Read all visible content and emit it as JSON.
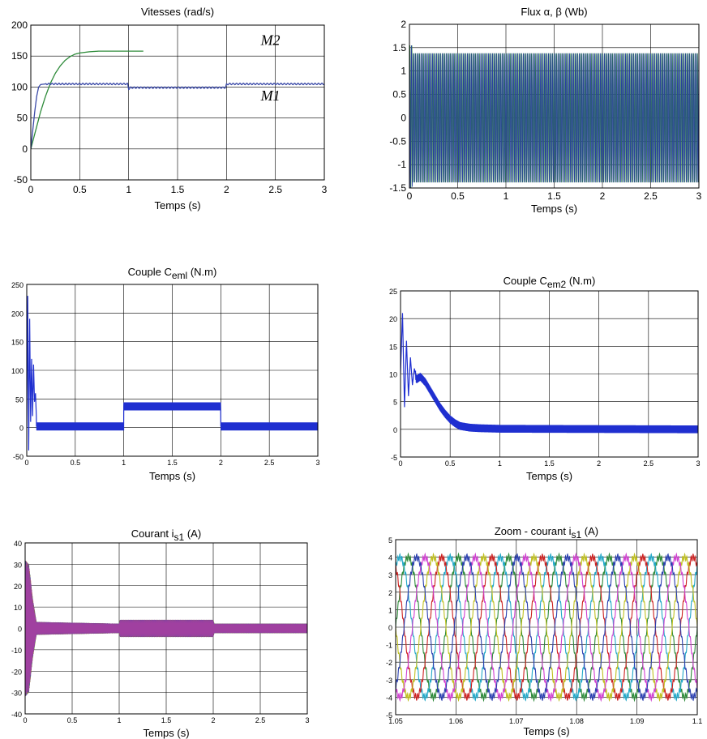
{
  "chart_data": [
    {
      "id": "vitesses",
      "type": "line",
      "title": "Vitesses (rad/s)",
      "xlabel": "Temps (s)",
      "ylabel": "",
      "xlim": [
        0,
        3
      ],
      "ylim": [
        -50,
        200
      ],
      "xticks": [
        0,
        0.5,
        1,
        1.5,
        2,
        2.5,
        3
      ],
      "yticks": [
        -50,
        0,
        50,
        100,
        150,
        200
      ],
      "grid": true,
      "annotations": [
        {
          "text": "M2",
          "x": 2.35,
          "y": 168
        },
        {
          "text": "M1",
          "x": 2.35,
          "y": 78
        }
      ],
      "series": [
        {
          "color": "#2e8b3a",
          "x": [
            0,
            0.05,
            0.1,
            0.15,
            0.2,
            0.25,
            0.3,
            0.35,
            0.4,
            0.45,
            0.5,
            0.6,
            0.7,
            0.8,
            0.9,
            1.0,
            1.15
          ],
          "y": [
            0,
            30,
            60,
            85,
            106,
            122,
            134,
            143,
            149,
            153,
            155,
            157,
            158,
            158,
            158,
            158,
            158
          ]
        },
        {
          "color": "#3b4aa8",
          "x": [
            0,
            0.02,
            0.04,
            0.06,
            0.08,
            0.1,
            0.15,
            0.5,
            0.99,
            1.0,
            1.02,
            1.1,
            1.99,
            2.0,
            2.02,
            3.0
          ],
          "y": [
            0,
            30,
            60,
            85,
            100,
            104,
            105,
            105,
            105,
            97,
            99,
            99,
            99,
            104,
            105,
            105
          ]
        }
      ]
    },
    {
      "id": "flux",
      "type": "line",
      "title": "Flux α, β (Wb)",
      "xlabel": "Temps (s)",
      "ylabel": "",
      "xlim": [
        0,
        3
      ],
      "ylim": [
        -1.5,
        2
      ],
      "xticks": [
        0,
        0.5,
        1,
        1.5,
        2,
        2.5,
        3
      ],
      "yticks": [
        -1.5,
        -1,
        -0.5,
        0,
        0.5,
        1,
        1.5,
        2
      ],
      "grid": true,
      "oscillation": {
        "amplitude": 1.38,
        "cycles": 150,
        "colors": [
          "#2e8b3a",
          "#2a3fa0"
        ]
      }
    },
    {
      "id": "couple1",
      "type": "line",
      "title": "Couple C",
      "title_sub": "eml",
      "title_unit": "(N.m)",
      "xlabel": "Temps (s)",
      "ylabel": "",
      "xlim": [
        0,
        3
      ],
      "ylim": [
        -50,
        250
      ],
      "xticks": [
        0,
        0.5,
        1,
        1.5,
        2,
        2.5,
        3
      ],
      "yticks": [
        -50,
        0,
        50,
        100,
        150,
        200,
        250
      ],
      "grid": true,
      "series": [
        {
          "color": "#1f2fd0",
          "x": [
            0,
            0.01,
            0.02,
            0.03,
            0.04,
            0.05,
            0.06,
            0.07,
            0.08,
            0.09,
            0.1,
            0.12,
            0.14,
            0.99,
            1.0,
            1.05,
            1.99,
            2.0,
            2.05,
            3.0
          ],
          "y": [
            0,
            230,
            -40,
            190,
            10,
            120,
            20,
            110,
            45,
            60,
            15,
            5,
            2,
            2,
            30,
            37,
            37,
            8,
            2,
            2
          ]
        }
      ],
      "ripple": [
        {
          "x0": 0.1,
          "x1": 1.0,
          "center": 2,
          "amp": 7
        },
        {
          "x0": 1.0,
          "x1": 2.0,
          "center": 37,
          "amp": 7
        },
        {
          "x0": 2.0,
          "x1": 3.0,
          "center": 2,
          "amp": 7
        }
      ]
    },
    {
      "id": "couple2",
      "type": "line",
      "title": "Couple C",
      "title_sub": "em2",
      "title_unit": "(N.m)",
      "xlabel": "Temps (s)",
      "ylabel": "",
      "xlim": [
        0,
        3
      ],
      "ylim": [
        -5,
        25
      ],
      "xticks": [
        0,
        0.5,
        1,
        1.5,
        2,
        2.5,
        3
      ],
      "yticks": [
        -5,
        0,
        5,
        10,
        15,
        20,
        25
      ],
      "grid": true,
      "series": [
        {
          "color": "#1f2fd0",
          "x": [
            0,
            0.02,
            0.04,
            0.06,
            0.08,
            0.1,
            0.12,
            0.14,
            0.16,
            0.2,
            0.25,
            0.3,
            0.35,
            0.4,
            0.45,
            0.5,
            0.55,
            0.6,
            0.7,
            0.8,
            1.0,
            3.0
          ],
          "y": [
            10,
            21,
            4,
            16,
            6,
            13,
            8,
            11,
            9,
            9.5,
            8.5,
            7,
            5.5,
            4,
            2.8,
            1.8,
            1.1,
            0.6,
            0.3,
            0.2,
            0.1,
            0
          ]
        }
      ],
      "ripple": [
        {
          "x0": 0.15,
          "x1": 3.0,
          "center": 0,
          "amp": 0.7,
          "follow": true
        }
      ]
    },
    {
      "id": "courant",
      "type": "line",
      "title": "Courant i",
      "title_sub": "s1",
      "title_unit": "(A)",
      "xlabel": "Temps (s)",
      "ylabel": "",
      "xlim": [
        0,
        3
      ],
      "ylim": [
        -40,
        40
      ],
      "xticks": [
        0,
        0.5,
        1,
        1.5,
        2,
        2.5,
        3
      ],
      "yticks": [
        -40,
        -30,
        -20,
        -10,
        0,
        10,
        20,
        30,
        40
      ],
      "grid": true,
      "envelope": [
        {
          "x": 0,
          "amp": 32
        },
        {
          "x": 0.04,
          "amp": 30
        },
        {
          "x": 0.08,
          "amp": 14
        },
        {
          "x": 0.12,
          "amp": 3
        },
        {
          "x": 1.0,
          "amp": 2.2
        },
        {
          "x": 1.01,
          "amp": 4
        },
        {
          "x": 2.0,
          "amp": 4
        },
        {
          "x": 2.01,
          "amp": 2.2
        },
        {
          "x": 3.0,
          "amp": 2.2
        }
      ],
      "colors": [
        "#22a0a0",
        "#d02020",
        "#2e8b3a",
        "#cc9a00",
        "#3b4aa8",
        "#a040a0"
      ]
    },
    {
      "id": "zoom",
      "type": "line",
      "title": "Zoom - courant i",
      "title_sub": "s1",
      "title_unit": "(A)",
      "xlabel": "Temps (s)",
      "ylabel": "",
      "xlim": [
        1.05,
        1.1
      ],
      "ylim": [
        -5,
        5
      ],
      "xticks": [
        1.05,
        1.06,
        1.07,
        1.08,
        1.09,
        1.1
      ],
      "yticks": [
        -5,
        -4,
        -3,
        -2,
        -1,
        0,
        1,
        2,
        3,
        4,
        5
      ],
      "grid": true,
      "sinusoids": {
        "amplitude": 4.0,
        "frequency_hz": 120,
        "phases_deg": [
          0,
          60,
          120,
          180,
          240,
          300
        ],
        "colors": [
          "#2e8b3a",
          "#22a8c8",
          "#cc2020",
          "#c0c020",
          "#d040d0",
          "#2a3fb0"
        ]
      }
    }
  ]
}
